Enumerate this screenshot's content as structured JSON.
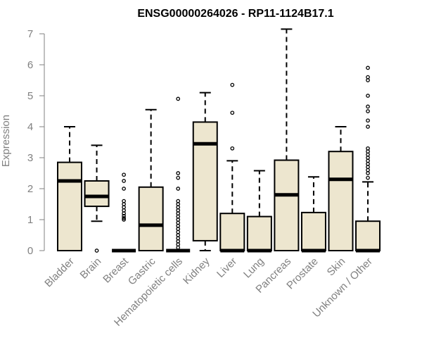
{
  "chart_data": {
    "type": "boxplot",
    "title": "ENSG00000264026 - RP11-1124B17.1",
    "xlabel": "",
    "ylabel": "Expression",
    "ylim": [
      0,
      7
    ],
    "yticks": [
      0,
      1,
      2,
      3,
      4,
      5,
      6,
      7
    ],
    "grid": false,
    "colors": {
      "box_fill": "#ede6cf",
      "stroke": "#000000",
      "axis_text": "#808080"
    },
    "categories": [
      "Bladder",
      "Brain",
      "Breast",
      "Gastric",
      "Hematopoietic cells",
      "Kidney",
      "Liver",
      "Lung",
      "Pancreas",
      "Prostate",
      "Skin",
      "Unknown / Other"
    ],
    "boxes": [
      {
        "category": "Bladder",
        "min": 0,
        "q1": 0,
        "median": 2.25,
        "q3": 2.85,
        "max": 4.0,
        "outliers": []
      },
      {
        "category": "Brain",
        "min": 0.95,
        "q1": 1.43,
        "median": 1.75,
        "q3": 2.25,
        "max": 3.4,
        "outliers": [
          0
        ]
      },
      {
        "category": "Breast",
        "min": 0,
        "q1": 0,
        "median": 0,
        "q3": 0,
        "max": 0,
        "outliers": [
          1.0,
          1.05,
          1.12,
          1.2,
          1.3,
          1.4,
          1.5,
          1.6,
          2.0,
          2.25,
          2.45
        ]
      },
      {
        "category": "Gastric",
        "min": 0,
        "q1": 0,
        "median": 0.82,
        "q3": 2.05,
        "max": 4.55,
        "outliers": []
      },
      {
        "category": "Hematopoietic cells",
        "min": 0,
        "q1": 0,
        "median": 0,
        "q3": 0,
        "max": 0,
        "outliers": [
          0.1,
          0.2,
          0.3,
          0.4,
          0.5,
          0.6,
          0.7,
          0.8,
          0.9,
          1.0,
          1.1,
          1.2,
          1.3,
          1.4,
          1.5,
          1.6,
          2.0,
          2.35,
          2.5,
          4.9
        ]
      },
      {
        "category": "Kidney",
        "min": 0,
        "q1": 0.32,
        "median": 3.45,
        "q3": 4.15,
        "max": 5.1,
        "outliers": []
      },
      {
        "category": "Liver",
        "min": 0,
        "q1": 0,
        "median": 0,
        "q3": 1.2,
        "max": 2.9,
        "outliers": [
          3.3,
          4.45,
          5.35
        ]
      },
      {
        "category": "Lung",
        "min": 0,
        "q1": 0,
        "median": 0,
        "q3": 1.1,
        "max": 2.58,
        "outliers": []
      },
      {
        "category": "Pancreas",
        "min": 0,
        "q1": 0,
        "median": 1.8,
        "q3": 2.92,
        "max": 7.15,
        "outliers": []
      },
      {
        "category": "Prostate",
        "min": 0,
        "q1": 0,
        "median": 0,
        "q3": 1.23,
        "max": 2.38,
        "outliers": []
      },
      {
        "category": "Skin",
        "min": 0,
        "q1": 0,
        "median": 2.3,
        "q3": 3.2,
        "max": 4.0,
        "outliers": []
      },
      {
        "category": "Unknown / Other",
        "min": 0,
        "q1": 0,
        "median": 0,
        "q3": 0.95,
        "max": 2.22,
        "outliers": [
          2.35,
          2.5,
          2.6,
          2.7,
          2.8,
          2.9,
          3.0,
          3.1,
          3.2,
          3.3,
          4.0,
          4.2,
          4.5,
          4.65,
          5.0,
          5.5,
          5.6,
          5.9
        ]
      }
    ]
  }
}
